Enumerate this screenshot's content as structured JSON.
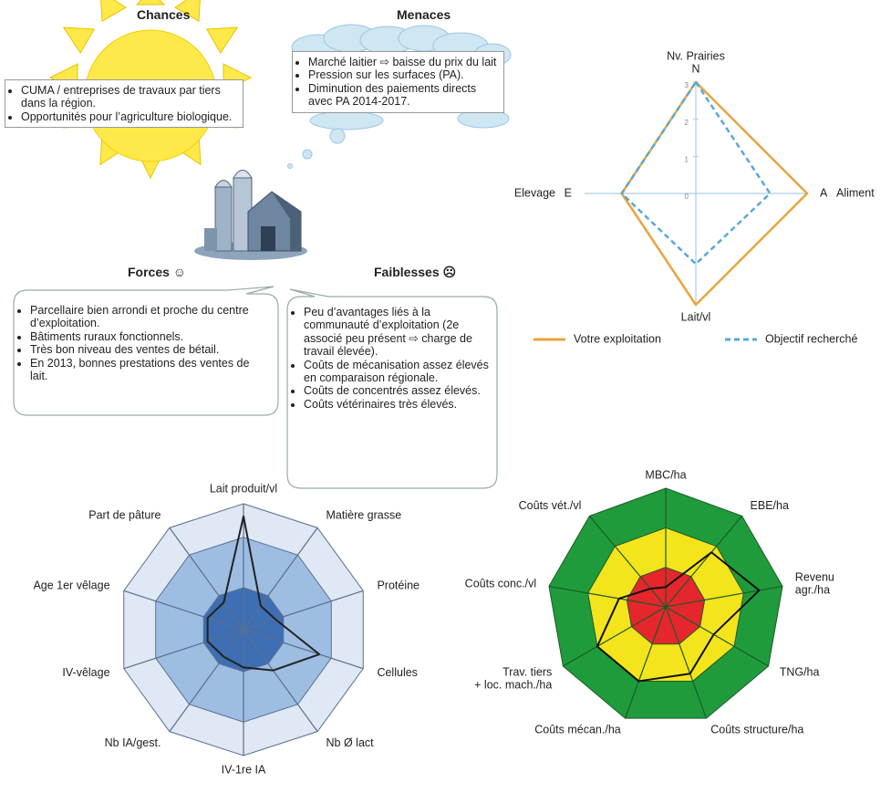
{
  "swot": {
    "chances": {
      "title": "Chances",
      "items": [
        "CUMA / entreprises de travaux par tiers dans la région.",
        "Opportunités pour l’agriculture biologique."
      ]
    },
    "menaces": {
      "title": "Menaces",
      "items": [
        "Marché laitier ⇨ baisse du prix du lait",
        "Pression sur les surfaces (PA).",
        "Diminution des paiements directs avec PA 2014-2017."
      ]
    },
    "forces": {
      "title": "Forces ☺",
      "items": [
        "Parcellaire bien arrondi et proche du centre d’exploitation.",
        "Bâtiments ruraux fonctionnels.",
        "Très bon niveau des ventes de bétail.",
        "En 2013, bonnes prestations des ventes de lait."
      ]
    },
    "faiblesses": {
      "title": "Faiblesses ☹",
      "items": [
        "Peu d’avantages liés à la communauté d’exploitation (2e associé peu présent ⇨ charge de travail élevée).",
        "Coûts de mécanisation assez élevés en comparaison régionale.",
        "Coûts de concentrés assez élevés.",
        "Coûts vétérinaires très élevés."
      ]
    }
  },
  "chart_data": [
    {
      "type": "radar",
      "categories": [
        "Nv. Prairies",
        "Aliment",
        "Lait/vl",
        "Elevage"
      ],
      "axis_codes": [
        "N",
        "A",
        null,
        "E"
      ],
      "ylim": [
        0,
        3
      ],
      "yticks": [
        0,
        1,
        2,
        3
      ],
      "axis_color": "#a9cfe9",
      "series": [
        {
          "name": "Votre exploitation",
          "color": "#e8a540",
          "dashed": false,
          "values": [
            3,
            3,
            3,
            2
          ]
        },
        {
          "name": "Objectif recherché",
          "color": "#5aa7da",
          "dashed": true,
          "values": [
            3,
            2,
            1.9,
            2
          ]
        }
      ],
      "legend": "bottom"
    },
    {
      "type": "radar",
      "categories": [
        "Lait produit/vl",
        "Matière grasse",
        "Protéine",
        "Cellules",
        "Nb Ø lact",
        "IV-1re IA",
        "Nb IA/gest.",
        "IV-vêlage",
        "Age 1er vêlage",
        "Part de pâture"
      ],
      "ylim": [
        0,
        3
      ],
      "axis_color": "#5a6f8e",
      "bands": [
        {
          "limit": 3,
          "color": "#dfe8f4"
        },
        {
          "limit": 2.2,
          "color": "#9dbde2"
        },
        {
          "limit": 1,
          "color": "#3e6fb5"
        }
      ],
      "series": [
        {
          "color": "#222222",
          "values": [
            2.7,
            0.7,
            0.8,
            1.9,
            1.2,
            0.9,
            0.8,
            0.9,
            0.9,
            0.8
          ]
        }
      ]
    },
    {
      "type": "radar",
      "categories": [
        "MBC/ha",
        "EBE/ha",
        [
          "Revenu",
          "agr./ha"
        ],
        "TNG/ha",
        "Coûts structure/ha",
        "Coûts mécan./ha",
        [
          "Trav. tiers",
          "+ loc. mach./ha"
        ],
        "Coûts conc./vl",
        "Coûts vét./vl"
      ],
      "ylim": [
        0,
        3
      ],
      "axis_color": "#1d5a2a",
      "bands": [
        {
          "limit": 3,
          "color": "#1f9b3b"
        },
        {
          "limit": 2,
          "color": "#f4e41c"
        },
        {
          "limit": 1,
          "color": "#e5262c"
        }
      ],
      "series": [
        {
          "color": "#111111",
          "values": [
            0.5,
            1.8,
            2.4,
            1.4,
            1.8,
            2.0,
            2.0,
            1.2,
            0.6
          ]
        }
      ]
    }
  ]
}
